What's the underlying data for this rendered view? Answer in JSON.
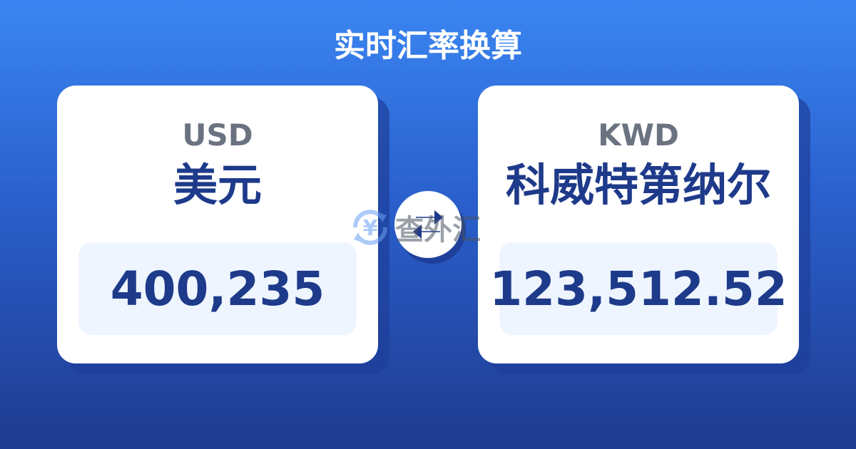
{
  "title": "实时汇率换算",
  "from": {
    "code": "USD",
    "name": "美元",
    "amount": "400,235"
  },
  "to": {
    "code": "KWD",
    "name": "科威特第纳尔",
    "amount": "123,512.52"
  },
  "swap_icon": "swap-arrows-icon",
  "watermark": "查外汇",
  "colors": {
    "accent": "#1e3a8a",
    "background": "#2a5fcc"
  }
}
